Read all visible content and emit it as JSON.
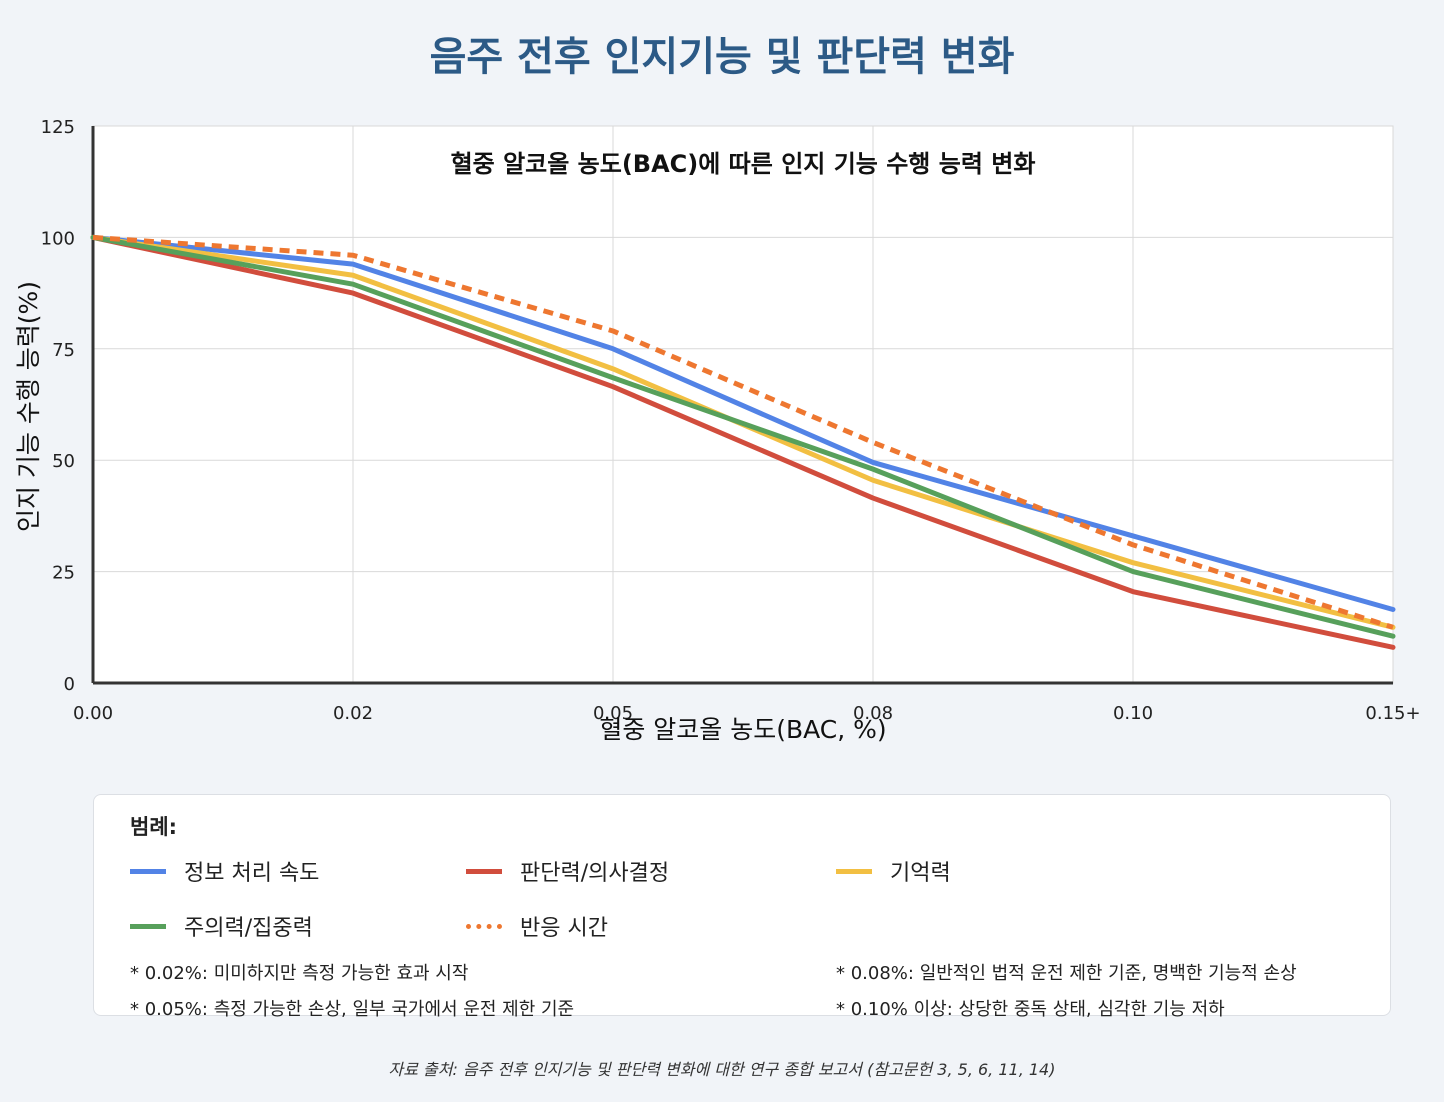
{
  "page": {
    "title": "음주 전후 인지기능 및 판단력 변화",
    "source": "자료 출처: 음주 전후 인지기능 및 판단력 변화에 대한 연구 종합 보고서 (참고문헌 3, 5, 6, 11, 14)"
  },
  "chart_data": {
    "type": "line",
    "title": "혈중 알코올 농도(BAC)에 따른 인지 기능 수행 능력 변화",
    "xlabel": "혈중 알코올 농도(BAC, %)",
    "ylabel": "인지 기능 수행 능력(%)",
    "categories": [
      "0.00",
      "0.02",
      "0.05",
      "0.08",
      "0.10",
      "0.15+"
    ],
    "yticks": [
      "0",
      "25",
      "50",
      "75",
      "100",
      "125"
    ],
    "ylim": [
      0,
      125
    ],
    "grid": true,
    "series": [
      {
        "name": "정보 처리 속도",
        "color": "#5283e6",
        "dashed": false,
        "values": [
          100,
          94,
          75,
          49.5,
          33,
          16.5
        ]
      },
      {
        "name": "판단력/의사결정",
        "color": "#d14d3d",
        "dashed": false,
        "values": [
          100,
          87.5,
          66.5,
          41.5,
          20.5,
          8
        ]
      },
      {
        "name": "기억력",
        "color": "#f2bf42",
        "dashed": false,
        "values": [
          100,
          91.5,
          70.5,
          45.5,
          27,
          12.5
        ]
      },
      {
        "name": "주의력/집중력",
        "color": "#57a05b",
        "dashed": false,
        "values": [
          100,
          89.5,
          68.5,
          48,
          25,
          10.5
        ]
      },
      {
        "name": "반응 시간",
        "color": "#ee7730",
        "dashed": true,
        "values": [
          100,
          96,
          79,
          54,
          31,
          12.5
        ]
      }
    ]
  },
  "legend": {
    "heading": "범례:",
    "notes": [
      "* 0.02%: 미미하지만 측정 가능한 효과 시작",
      "* 0.05%: 측정 가능한 손상, 일부 국가에서 운전 제한 기준",
      "* 0.08%: 일반적인 법적 운전 제한 기준, 명백한 기능적 손상",
      "* 0.10% 이상: 상당한 중독 상태, 심각한 기능 저하"
    ]
  }
}
